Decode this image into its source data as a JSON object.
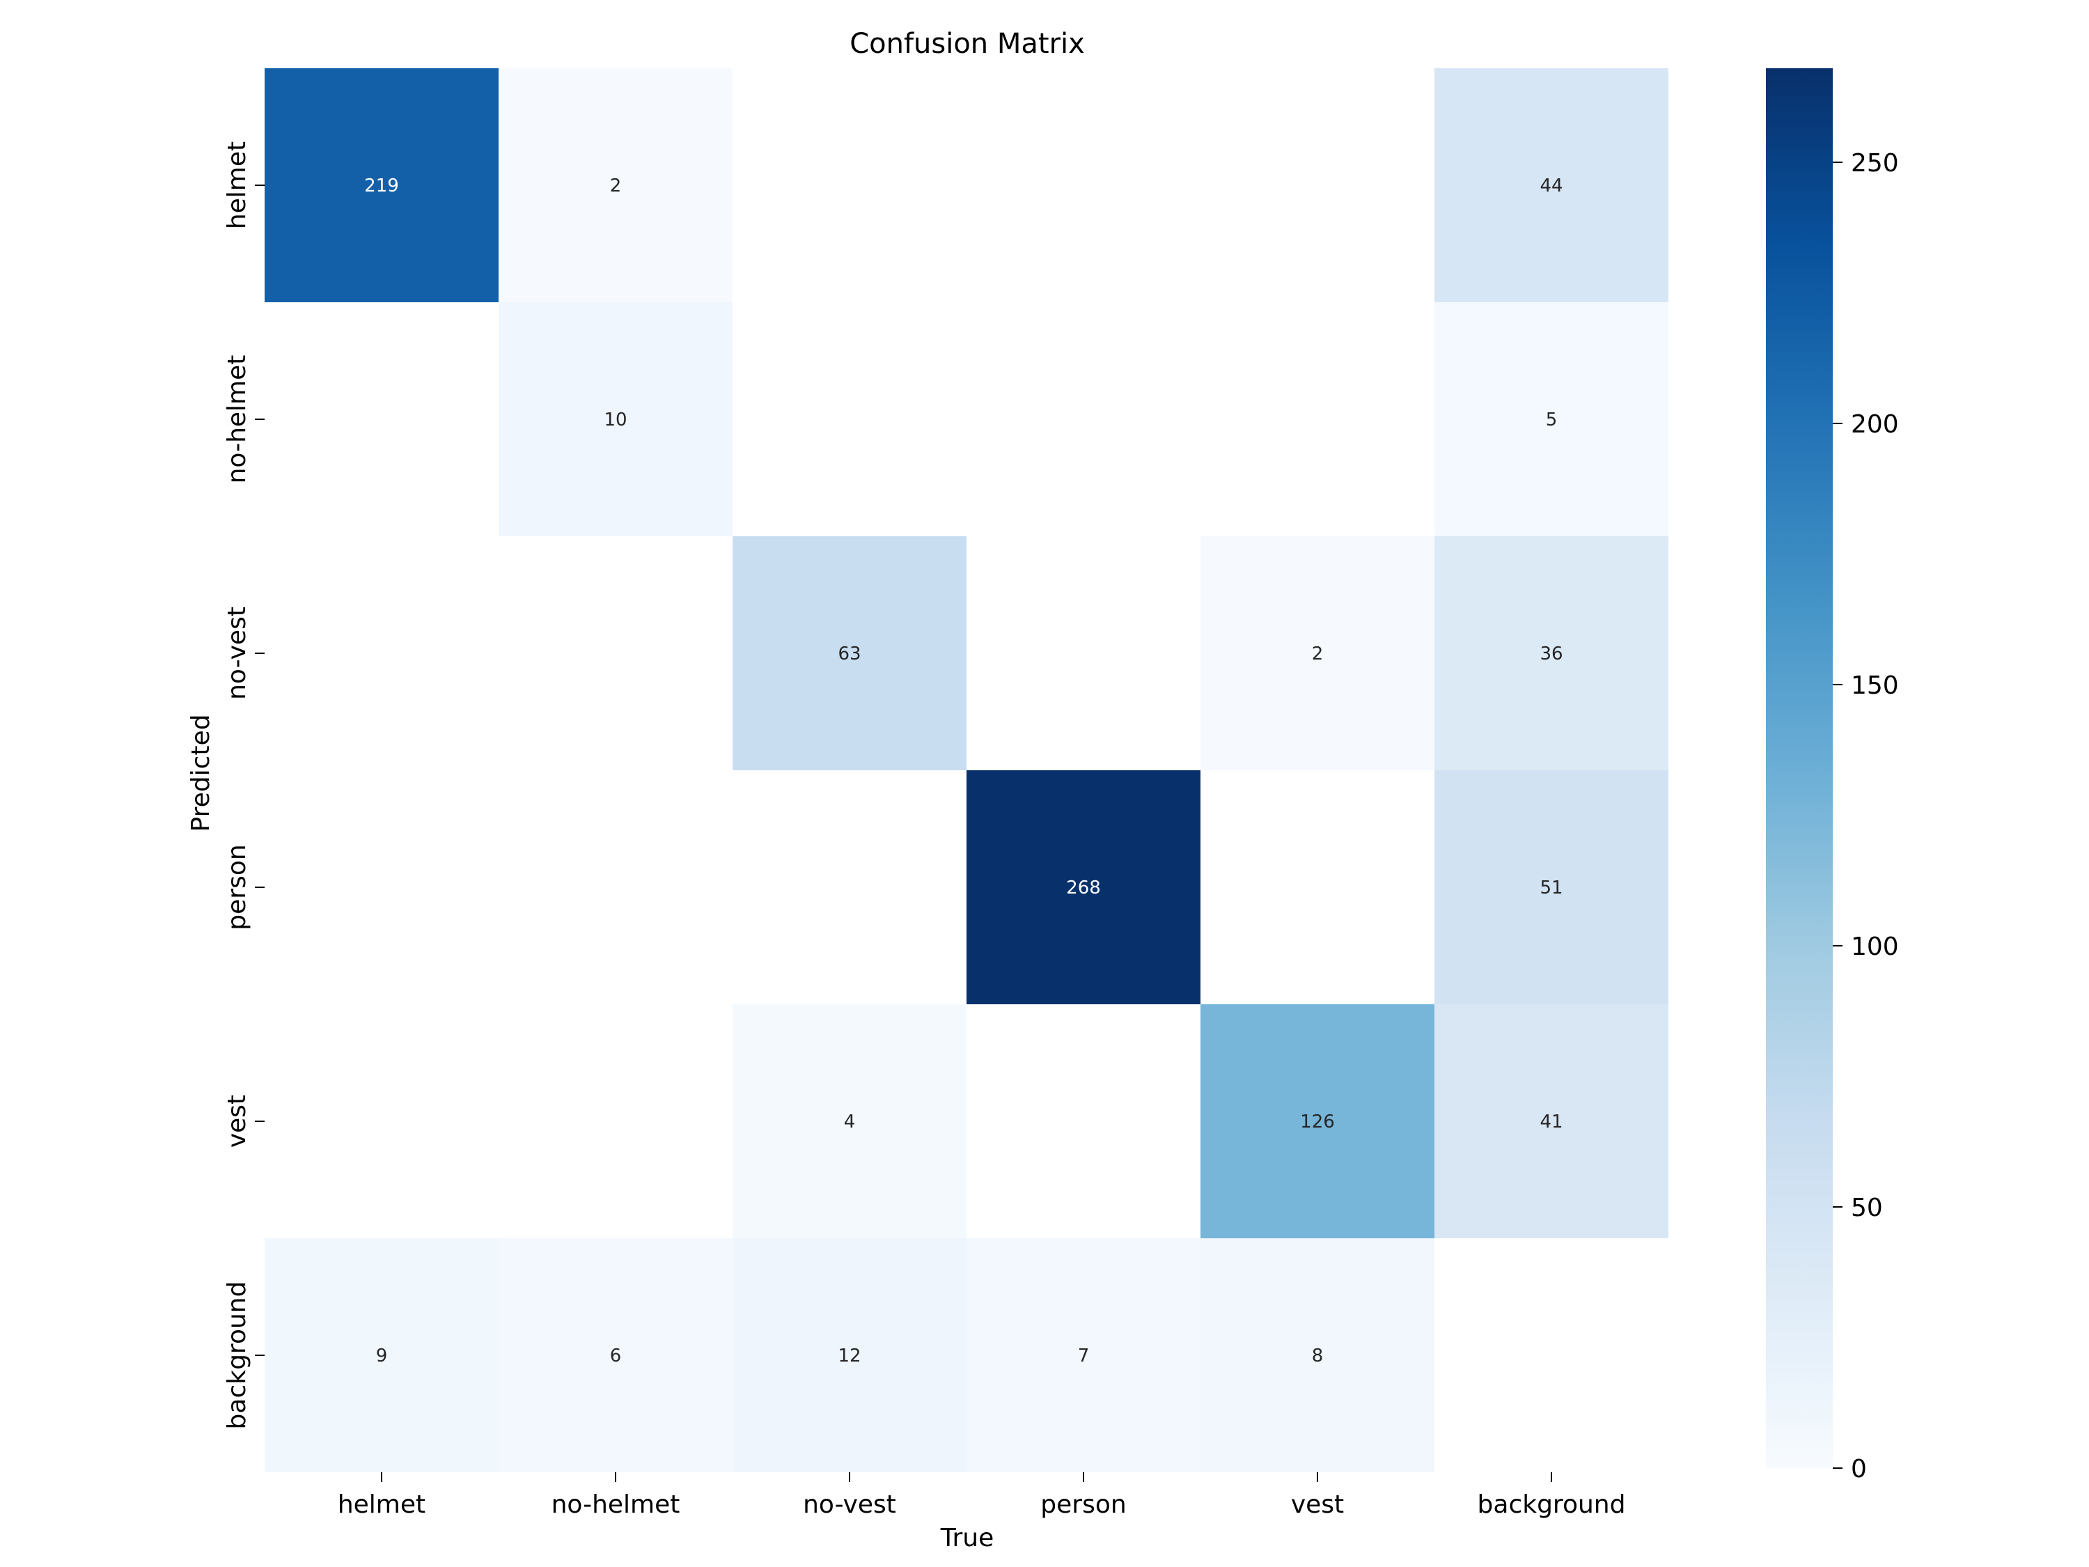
{
  "chart_data": {
    "type": "heatmap",
    "title": "Confusion Matrix",
    "xlabel": "True",
    "ylabel": "Predicted",
    "x_categories": [
      "helmet",
      "no-helmet",
      "no-vest",
      "person",
      "vest",
      "background"
    ],
    "y_categories": [
      "helmet",
      "no-helmet",
      "no-vest",
      "person",
      "vest",
      "background"
    ],
    "values": [
      [
        219,
        2,
        null,
        null,
        null,
        44
      ],
      [
        null,
        10,
        null,
        null,
        null,
        5
      ],
      [
        null,
        null,
        63,
        null,
        2,
        36
      ],
      [
        null,
        null,
        null,
        268,
        null,
        51
      ],
      [
        null,
        null,
        4,
        null,
        126,
        41
      ],
      [
        9,
        6,
        12,
        7,
        8,
        null
      ]
    ],
    "colorbar": {
      "min": 0,
      "max": 268,
      "ticks": [
        0,
        50,
        100,
        150,
        200,
        250
      ]
    },
    "colormap": "Blues"
  }
}
